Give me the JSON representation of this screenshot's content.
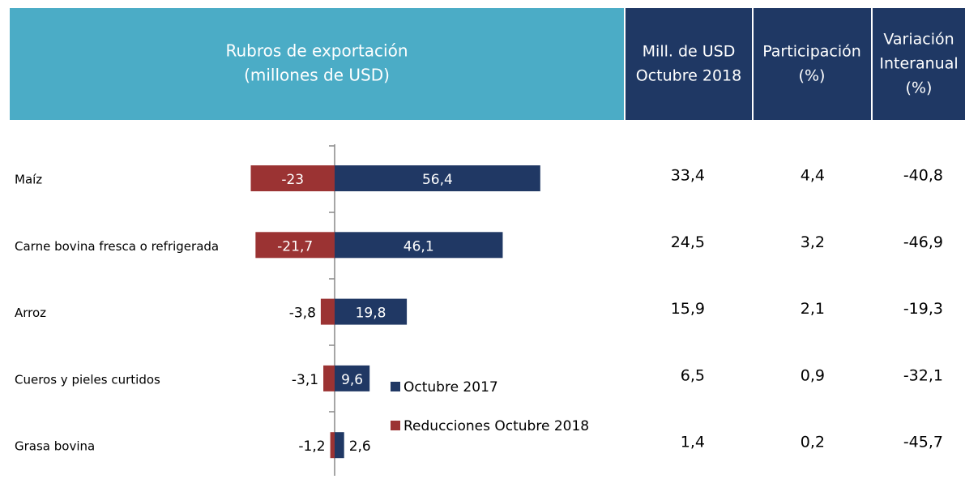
{
  "header": {
    "columns": [
      [
        "Rubros de exportación",
        "(millones de USD)"
      ],
      [
        "Mill. de USD",
        "Octubre 2018"
      ],
      [
        "Participación",
        "(%)"
      ],
      [
        "Variación",
        "Interanual",
        "(%)"
      ]
    ]
  },
  "chart_data": {
    "type": "bar",
    "orientation": "horizontal",
    "categories": [
      "Maíz",
      "Carne bovina fresca o refrigerada",
      "Arroz",
      "Cueros y pieles curtidos",
      "Grasa bovina"
    ],
    "series": [
      {
        "name": "Octubre 2017",
        "color": "#203864",
        "values": [
          56.4,
          46.1,
          19.8,
          9.6,
          2.6
        ],
        "value_labels": [
          "56,4",
          "46,1",
          "19,8",
          "9,6",
          "2,6"
        ]
      },
      {
        "name": "Reducciones Octubre 2018",
        "color": "#9b3333",
        "values": [
          -23,
          -21.7,
          -3.8,
          -3.1,
          -1.2
        ],
        "value_labels": [
          "-23",
          "-21,7",
          "-3,8",
          "-3,1",
          "-1,2"
        ]
      }
    ]
  },
  "table": {
    "rows": [
      [
        "33,4",
        "4,4",
        "-40,8"
      ],
      [
        "24,5",
        "3,2",
        "-46,9"
      ],
      [
        "15,9",
        "2,1",
        "-19,3"
      ],
      [
        "6,5",
        "0,9",
        "-32,1"
      ],
      [
        "1,4",
        "0,2",
        "-45,7"
      ]
    ]
  }
}
